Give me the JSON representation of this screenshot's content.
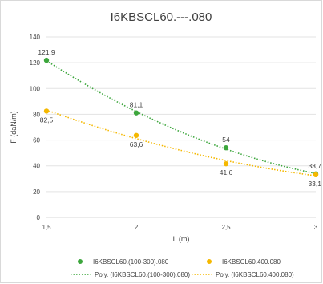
{
  "chart_data": {
    "type": "scatter",
    "title": "I6KBSCL60.---.080",
    "xlabel": "L (m)",
    "ylabel": "F (daN/m)",
    "xlim": [
      1.5,
      3
    ],
    "ylim": [
      0,
      140
    ],
    "x_ticks": [
      1.5,
      2,
      2.5,
      3
    ],
    "x_tick_labels": [
      "1,5",
      "2",
      "2,5",
      "3"
    ],
    "y_ticks": [
      0,
      20,
      40,
      60,
      80,
      100,
      120,
      140
    ],
    "y_tick_labels": [
      "0",
      "20",
      "40",
      "60",
      "80",
      "100",
      "120",
      "140"
    ],
    "grid": "horizontal",
    "legend_position": "bottom",
    "series": [
      {
        "name": "I6KBSCL60.(100-300).080",
        "color": "#3ca63c",
        "x": [
          1.5,
          2,
          2.5,
          3
        ],
        "y": [
          121.9,
          81.1,
          54,
          33.7
        ],
        "labels": [
          "121,9",
          "81,1",
          "54",
          "33,7"
        ],
        "label_pos": [
          "above",
          "above",
          "above",
          "above"
        ]
      },
      {
        "name": "I6KBSCL60.400.080",
        "color": "#f5b800",
        "x": [
          1.5,
          2,
          2.5,
          3
        ],
        "y": [
          82.5,
          63.6,
          41.6,
          33.1
        ],
        "labels": [
          "82,5",
          "63,6",
          "41,6",
          "33,1"
        ],
        "label_pos": [
          "below",
          "below",
          "below",
          "below"
        ]
      }
    ],
    "trendlines": [
      {
        "name": "Poly. (I6KBSCL60.(100-300).080)",
        "series": 0,
        "color": "#3ca63c",
        "style": "dotted"
      },
      {
        "name": "Poly. (I6KBSCL60.400.080)",
        "series": 1,
        "color": "#f5b800",
        "style": "dotted"
      }
    ]
  }
}
